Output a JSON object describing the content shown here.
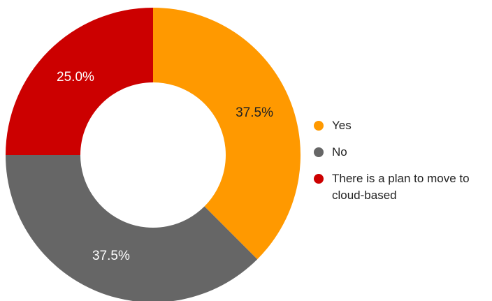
{
  "chart_data": {
    "type": "pie",
    "donut": true,
    "categories": [
      "Yes",
      "No",
      "There is a plan to move to cloud-based"
    ],
    "values": [
      37.5,
      37.5,
      25.0
    ],
    "labels": [
      "37.5%",
      "37.5%",
      "25.0%"
    ],
    "colors": [
      "#FF9900",
      "#666666",
      "#CC0000"
    ],
    "label_colors": [
      "#222222",
      "#ffffff",
      "#ffffff"
    ],
    "legend": {
      "position": "right",
      "entries": [
        {
          "label": "Yes",
          "color": "#FF9900"
        },
        {
          "label": "No",
          "color": "#666666"
        },
        {
          "label": "There is a plan to move to cloud-based",
          "color": "#CC0000"
        }
      ]
    },
    "start_angle": "12 o'clock",
    "direction": "clockwise"
  }
}
